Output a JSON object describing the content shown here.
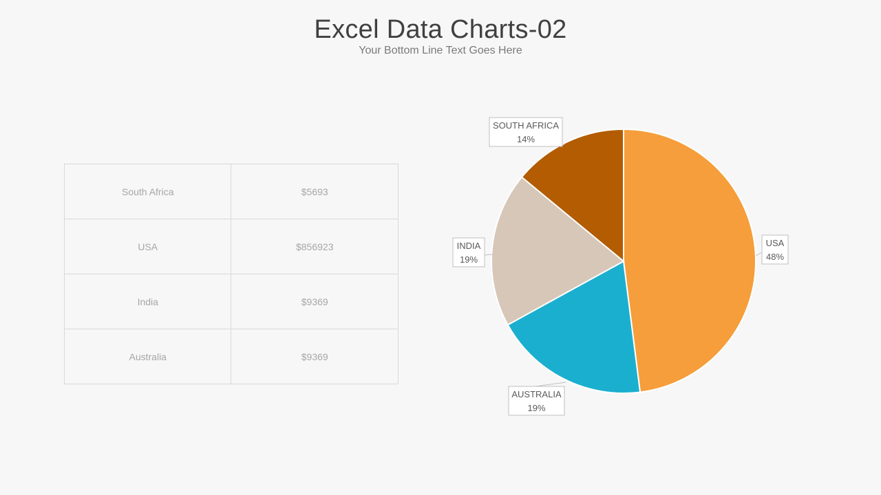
{
  "header": {
    "title": "Excel Data Charts-02",
    "subtitle": "Your Bottom Line Text Goes Here"
  },
  "table": {
    "rows": [
      {
        "country": "South Africa",
        "value": "$5693"
      },
      {
        "country": "USA",
        "value": "$856923"
      },
      {
        "country": "India",
        "value": "$9369"
      },
      {
        "country": "Australia",
        "value": "$9369"
      }
    ]
  },
  "chart_data": {
    "type": "pie",
    "title": "",
    "legend": "none",
    "slices": [
      {
        "label": "USA",
        "percent_label": "48%",
        "value": 48,
        "color": "#f59e3b"
      },
      {
        "label": "AUSTRALIA",
        "percent_label": "19%",
        "value": 19,
        "color": "#1bafcf"
      },
      {
        "label": "INDIA",
        "percent_label": "19%",
        "value": 19,
        "color": "#d7c7b8"
      },
      {
        "label": "SOUTH AFRICA",
        "percent_label": "14%",
        "value": 14,
        "color": "#b35c02"
      }
    ]
  }
}
